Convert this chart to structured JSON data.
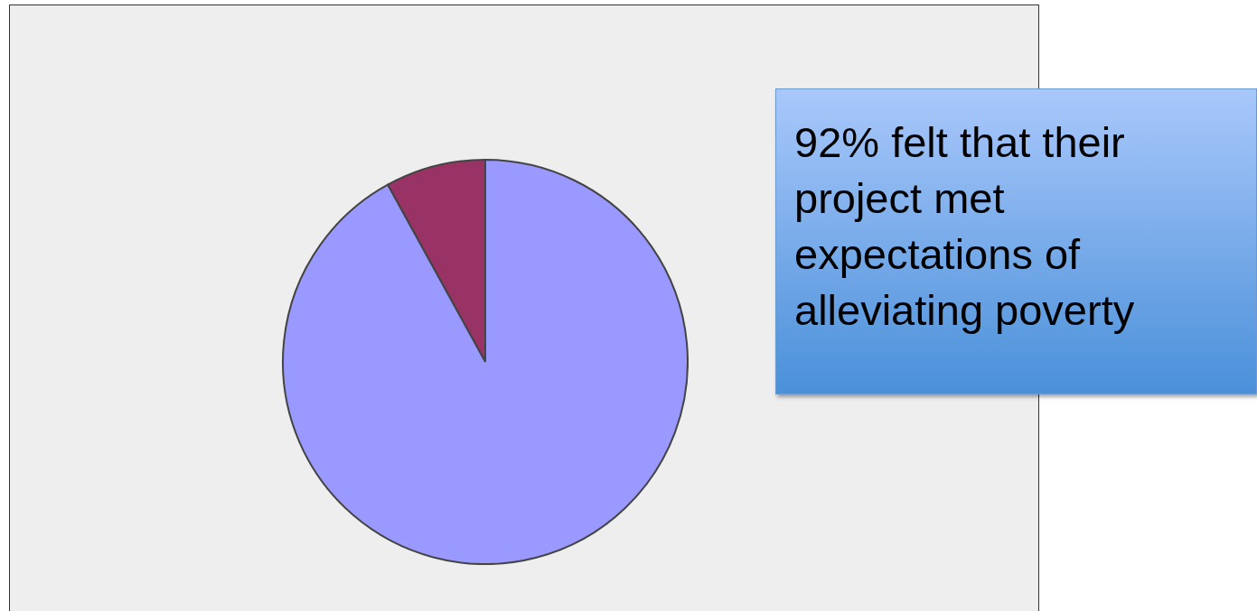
{
  "chart_data": {
    "type": "pie",
    "categories": [
      null,
      null
    ],
    "values": [
      8,
      92
    ],
    "colors": [
      "#993366",
      "#9999ff"
    ],
    "annotations": [
      "92% felt that their project met expectations of alleviating poverty"
    ]
  }
}
